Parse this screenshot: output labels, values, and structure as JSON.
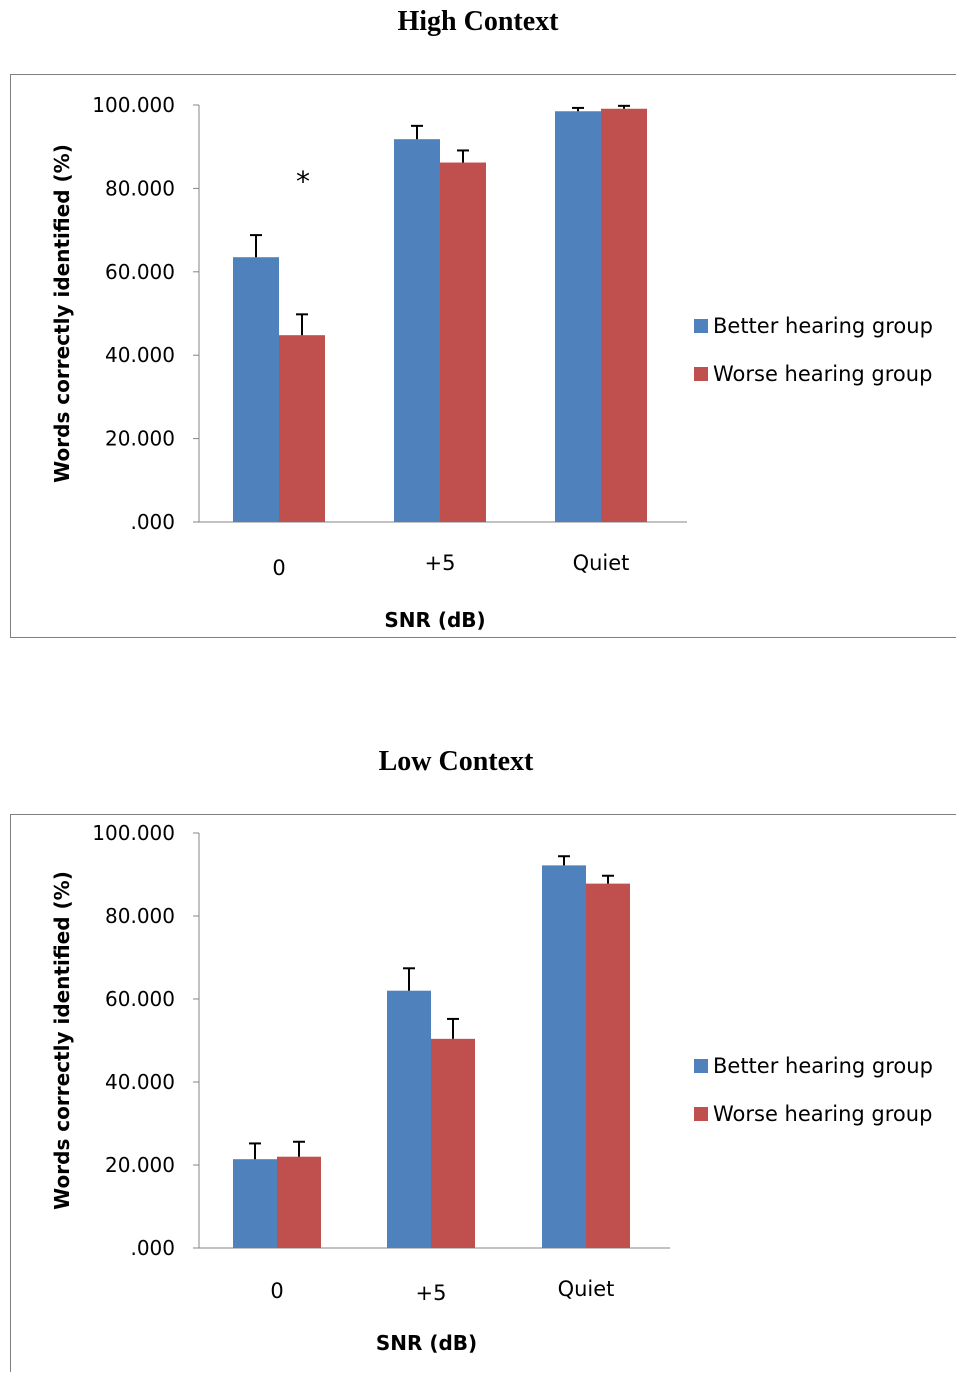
{
  "chart_data": [
    {
      "type": "bar",
      "title": "High Context",
      "xlabel": "SNR (dB)",
      "ylabel": "Words correctly identified (%)",
      "ylim": [
        0,
        100
      ],
      "yticks": [
        ".000",
        "20.000",
        "40.000",
        "60.000",
        "80.000",
        "100.000"
      ],
      "categories": [
        "0",
        "+5",
        "Quiet"
      ],
      "series": [
        {
          "name": "Better hearing group",
          "values": [
            63.5,
            91.8,
            98.5
          ],
          "errors": [
            5.3,
            3.2,
            0.8
          ]
        },
        {
          "name": "Worse hearing group",
          "values": [
            44.8,
            86.2,
            99.1
          ],
          "errors": [
            5.0,
            2.9,
            0.7
          ]
        }
      ],
      "annotations": [
        {
          "text": "*",
          "category": "0"
        }
      ],
      "legend": "right",
      "colors": [
        "#4f81bd",
        "#c0504d"
      ]
    },
    {
      "type": "bar",
      "title": "Low Context",
      "xlabel": "SNR (dB)",
      "ylabel": "Words correctly identified (%)",
      "ylim": [
        0,
        100
      ],
      "yticks": [
        ".000",
        "20.000",
        "40.000",
        "60.000",
        "80.000",
        "100.000"
      ],
      "categories": [
        "0",
        "+5",
        "Quiet"
      ],
      "series": [
        {
          "name": "Better hearing group",
          "values": [
            21.4,
            62.0,
            92.2
          ],
          "errors": [
            3.8,
            5.4,
            2.2
          ]
        },
        {
          "name": "Worse hearing group",
          "values": [
            22.0,
            50.4,
            87.8
          ],
          "errors": [
            3.6,
            4.8,
            1.9
          ]
        }
      ],
      "annotations": [],
      "legend": "right",
      "colors": [
        "#4f81bd",
        "#c0504d"
      ]
    }
  ]
}
